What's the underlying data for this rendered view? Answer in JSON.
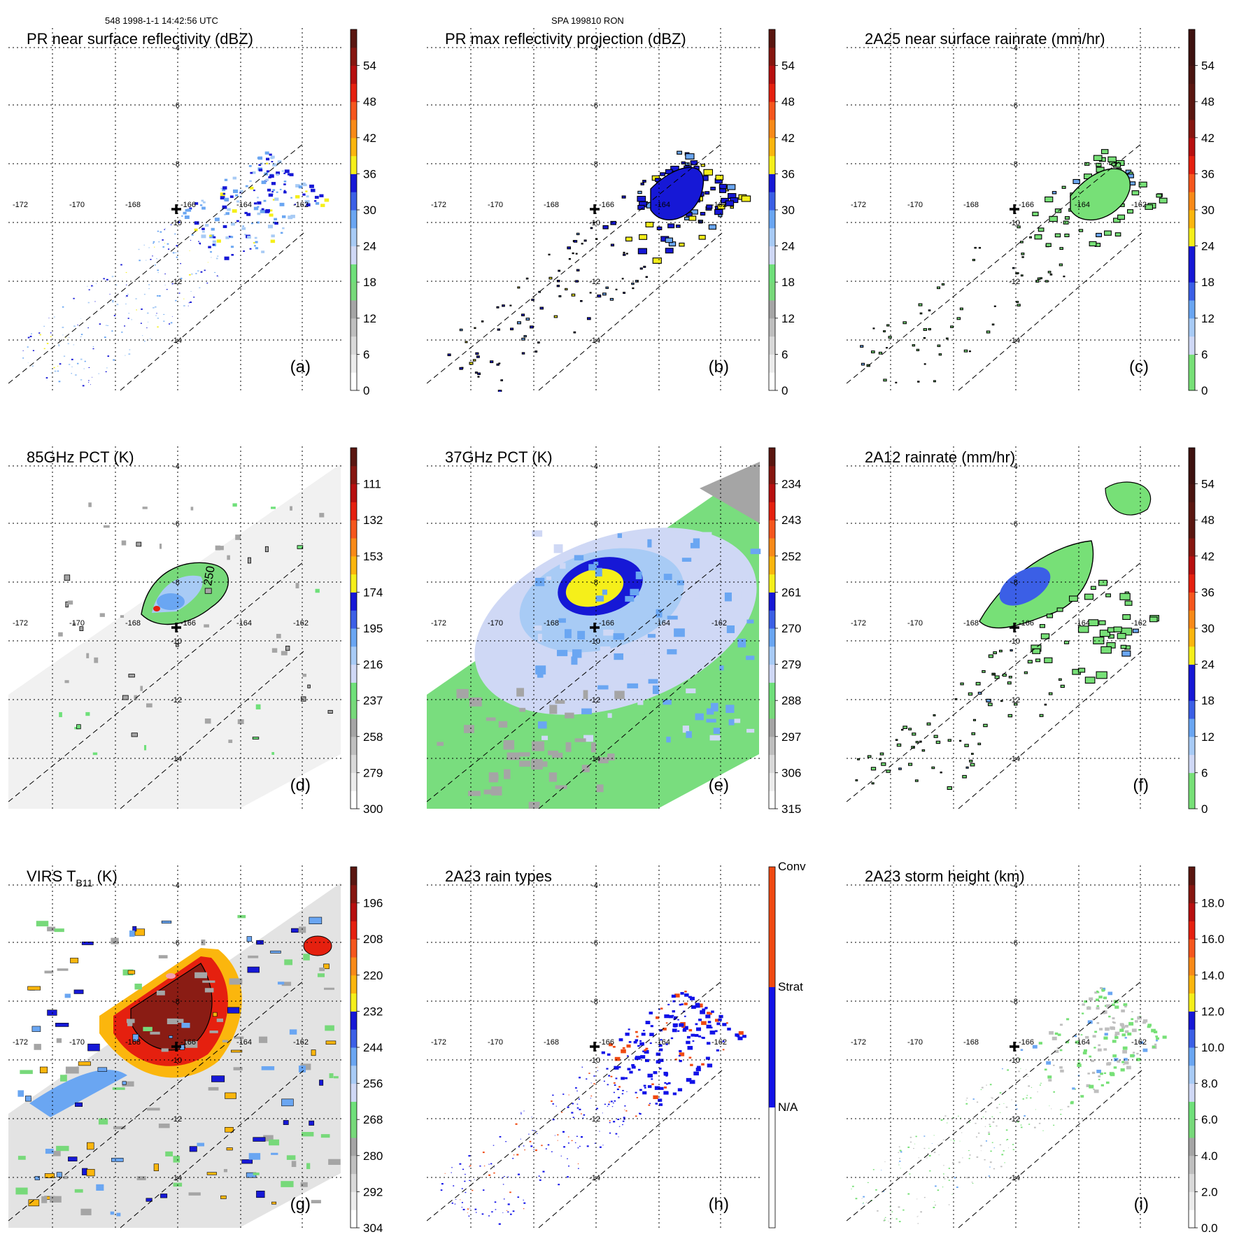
{
  "header": {
    "orbit_info": "548 1998-1-1 14:42:56 UTC",
    "case_info": "SPA 199810 RON"
  },
  "chart_data": [
    {
      "type": "heatmap",
      "panel": "a",
      "title": "PR near surface reflectivity (dBZ)",
      "label": "(a)",
      "lon_ticks": [
        "-172",
        "-170",
        "-168",
        "-166",
        "-164",
        "-162"
      ],
      "lat_ticks": [
        "-4",
        "-6",
        "-8",
        "-10",
        "-12",
        "-14"
      ],
      "xlim": [
        -173,
        -159.5
      ],
      "ylim": [
        -15.5,
        -3.5
      ],
      "colorbar": {
        "kind": "dbz",
        "ticks": [
          "0",
          "6",
          "12",
          "18",
          "24",
          "30",
          "36",
          "42",
          "48",
          "54"
        ]
      },
      "field": "pr_swath",
      "storm_center": {
        "lon": -166.5,
        "lat": -9.8
      }
    },
    {
      "type": "heatmap",
      "panel": "b",
      "title": "PR max reflectivity projection (dBZ)",
      "label": "(b)",
      "lon_ticks": [
        "-172",
        "-170",
        "-168",
        "-166",
        "-164",
        "-162"
      ],
      "lat_ticks": [
        "-4",
        "-6",
        "-8",
        "-10",
        "-12",
        "-14"
      ],
      "xlim": [
        -173,
        -159.5
      ],
      "ylim": [
        -15.5,
        -3.5
      ],
      "colorbar": {
        "kind": "dbz",
        "ticks": [
          "0",
          "6",
          "12",
          "18",
          "24",
          "30",
          "36",
          "42",
          "48",
          "54"
        ]
      },
      "field": "pr_swath_max",
      "storm_center": {
        "lon": -166.5,
        "lat": -9.8
      }
    },
    {
      "type": "heatmap",
      "panel": "c",
      "title": "2A25 near surface rainrate (mm/hr)",
      "label": "(c)",
      "lon_ticks": [
        "-172",
        "-170",
        "-168",
        "-166",
        "-164",
        "-162"
      ],
      "lat_ticks": [
        "-4",
        "-6",
        "-8",
        "-10",
        "-12",
        "-14"
      ],
      "xlim": [
        -173,
        -159.5
      ],
      "ylim": [
        -15.5,
        -3.5
      ],
      "colorbar": {
        "kind": "rain",
        "ticks": [
          "0",
          "6",
          "12",
          "18",
          "24",
          "30",
          "36",
          "42",
          "48",
          "54"
        ]
      },
      "field": "pr_swath_rain",
      "storm_center": {
        "lon": -166.5,
        "lat": -9.8
      }
    },
    {
      "type": "heatmap",
      "panel": "d",
      "title": "85GHz PCT (K)",
      "label": "(d)",
      "lon_ticks": [
        "-172",
        "-170",
        "-168",
        "-166",
        "-164",
        "-162"
      ],
      "lat_ticks": [
        "-4",
        "-6",
        "-8",
        "-10",
        "-12",
        "-14"
      ],
      "xlim": [
        -173,
        -159.5
      ],
      "ylim": [
        -15.5,
        -3.5
      ],
      "colorbar": {
        "kind": "pct",
        "ticks": [
          "300",
          "279",
          "258",
          "237",
          "216",
          "195",
          "174",
          "153",
          "132",
          "111"
        ]
      },
      "field": "tmi_85",
      "contour_label": "250",
      "storm_center": {
        "lon": -166.5,
        "lat": -9.8
      }
    },
    {
      "type": "heatmap",
      "panel": "e",
      "title": "37GHz PCT (K)",
      "label": "(e)",
      "lon_ticks": [
        "-172",
        "-170",
        "-168",
        "-166",
        "-164",
        "-162"
      ],
      "lat_ticks": [
        "-4",
        "-6",
        "-8",
        "-10",
        "-12",
        "-14"
      ],
      "xlim": [
        -173,
        -159.5
      ],
      "ylim": [
        -15.5,
        -3.5
      ],
      "colorbar": {
        "kind": "pct",
        "ticks": [
          "315",
          "306",
          "297",
          "288",
          "279",
          "270",
          "261",
          "252",
          "243",
          "234"
        ]
      },
      "field": "tmi_37",
      "storm_center": {
        "lon": -166.5,
        "lat": -9.8
      }
    },
    {
      "type": "heatmap",
      "panel": "f",
      "title": "2A12 rainrate (mm/hr)",
      "label": "(f)",
      "lon_ticks": [
        "-172",
        "-170",
        "-168",
        "-166",
        "-164",
        "-162"
      ],
      "lat_ticks": [
        "-4",
        "-6",
        "-8",
        "-10",
        "-12",
        "-14"
      ],
      "xlim": [
        -173,
        -159.5
      ],
      "ylim": [
        -15.5,
        -3.5
      ],
      "colorbar": {
        "kind": "rain",
        "ticks": [
          "0",
          "6",
          "12",
          "18",
          "24",
          "30",
          "36",
          "42",
          "48",
          "54"
        ]
      },
      "field": "tmi_rain",
      "storm_center": {
        "lon": -166.5,
        "lat": -9.8
      }
    },
    {
      "type": "heatmap",
      "panel": "g",
      "title": "VIRS T",
      "title_sub": "B11",
      "title_suffix": " (K)",
      "label": "(g)",
      "lon_ticks": [
        "-172",
        "-170",
        "-168",
        "-166",
        "-164",
        "-162"
      ],
      "lat_ticks": [
        "-4",
        "-6",
        "-8",
        "-10",
        "-12",
        "-14"
      ],
      "xlim": [
        -173,
        -159.5
      ],
      "ylim": [
        -15.5,
        -3.5
      ],
      "colorbar": {
        "kind": "virs",
        "ticks": [
          "304",
          "292",
          "280",
          "268",
          "256",
          "244",
          "232",
          "220",
          "208",
          "196"
        ]
      },
      "field": "virs",
      "storm_center": {
        "lon": -166.5,
        "lat": -9.8
      }
    },
    {
      "type": "heatmap",
      "panel": "h",
      "title": "2A23 rain types",
      "label": "(h)",
      "lon_ticks": [
        "-172",
        "-170",
        "-168",
        "-166",
        "-164",
        "-162"
      ],
      "lat_ticks": [
        "-4",
        "-6",
        "-8",
        "-10",
        "-12",
        "-14"
      ],
      "xlim": [
        -173,
        -159.5
      ],
      "ylim": [
        -15.5,
        -3.5
      ],
      "colorbar": {
        "kind": "types",
        "ticks": [
          "N/A",
          "Strat",
          "Conv"
        ]
      },
      "field": "pr_types",
      "storm_center": {
        "lon": -166.5,
        "lat": -9.8
      }
    },
    {
      "type": "heatmap",
      "panel": "i",
      "title": "2A23 storm height (km)",
      "label": "(i)",
      "lon_ticks": [
        "-172",
        "-170",
        "-168",
        "-166",
        "-164",
        "-162"
      ],
      "lat_ticks": [
        "-4",
        "-6",
        "-8",
        "-10",
        "-12",
        "-14"
      ],
      "xlim": [
        -173,
        -159.5
      ],
      "ylim": [
        -15.5,
        -3.5
      ],
      "colorbar": {
        "kind": "height",
        "ticks": [
          "0.0",
          "2.0",
          "4.0",
          "6.0",
          "8.0",
          "10.0",
          "12.0",
          "14.0",
          "16.0",
          "18.0"
        ]
      },
      "field": "pr_height",
      "storm_center": {
        "lon": -166.5,
        "lat": -9.8
      }
    }
  ],
  "colors": {
    "scale12": [
      "#ffffff",
      "#e6e6e6",
      "#c8c8c8",
      "#a8a8a8",
      "#6fe07a",
      "#cfd8f5",
      "#97c3f3",
      "#5a95f0",
      "#2a3fe0",
      "#0b0bd0",
      "#f5ef1a",
      "#fbb60d",
      "#f88a18",
      "#f5561d",
      "#e5200f",
      "#b00e0e",
      "#7a1a12",
      "#4e1410"
    ],
    "rainscale": [
      "#79e079",
      "#79e079",
      "#cfd8f5",
      "#97c3f3",
      "#5a95f0",
      "#2a3fe0",
      "#0b0bd0",
      "#f5ef1a",
      "#fbb60d",
      "#f88a18",
      "#f5561d",
      "#e5200f",
      "#b00e0e",
      "#7a1a12"
    ],
    "conv": "#f04a12",
    "strat": "#1212e8",
    "na": "#ffffff"
  }
}
